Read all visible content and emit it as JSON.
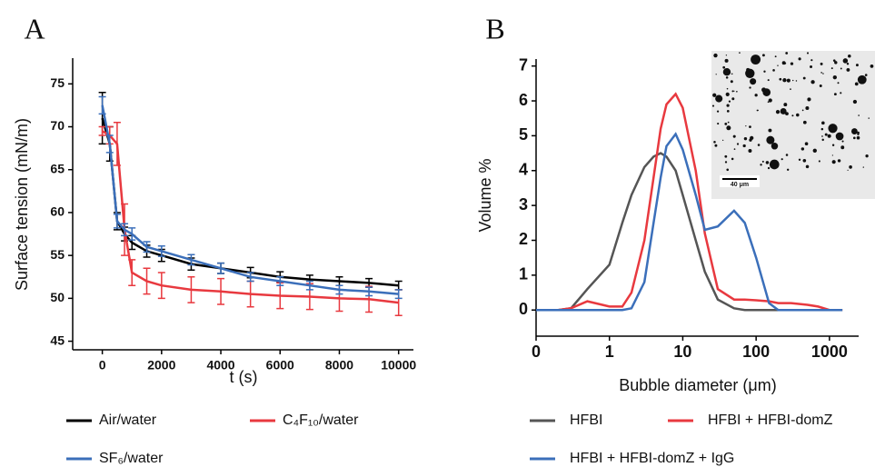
{
  "chart_data": [
    {
      "type": "line",
      "panel": "A",
      "x_label": "t (s)",
      "y_label": "Surface tension (mN/m)",
      "x": [
        0,
        250,
        500,
        750,
        1000,
        1500,
        2000,
        3000,
        4000,
        5000,
        6000,
        7000,
        8000,
        9000,
        10000
      ],
      "series": [
        {
          "name": "Air/water",
          "color": "#000000",
          "values": [
            71,
            68,
            59,
            57.5,
            56.5,
            55.5,
            55,
            54,
            53.5,
            53,
            52.5,
            52.2,
            52,
            51.8,
            51.5
          ],
          "errors": [
            3,
            2,
            1,
            0.8,
            0.8,
            0.7,
            0.7,
            0.7,
            0.6,
            0.6,
            0.6,
            0.5,
            0.5,
            0.5,
            0.5
          ]
        },
        {
          "name": "C₄F₁₀/water",
          "color": "#e8393f",
          "values": [
            69.5,
            69,
            68,
            58,
            53,
            52,
            51.5,
            51,
            50.8,
            50.5,
            50.3,
            50.2,
            50,
            49.9,
            49.5
          ],
          "errors": [
            0.5,
            1,
            2.5,
            3,
            1.5,
            1.5,
            1.5,
            1.5,
            1.5,
            1.5,
            1.5,
            1.5,
            1.5,
            1.5,
            1.5
          ]
        },
        {
          "name": "SF₆/water",
          "color": "#3b6fba",
          "values": [
            72.5,
            68,
            59,
            58,
            57.5,
            56,
            55.5,
            54.5,
            53.5,
            52.5,
            52,
            51.5,
            51,
            50.8,
            50.5
          ],
          "errors": [
            1,
            1,
            0.8,
            0.7,
            0.7,
            0.6,
            0.6,
            0.6,
            0.6,
            0.5,
            0.5,
            0.5,
            0.5,
            0.5,
            0.5
          ]
        }
      ],
      "xlim": [
        -1000,
        10500
      ],
      "xticks": [
        0,
        2000,
        4000,
        6000,
        8000,
        10000
      ],
      "ylim": [
        44,
        78
      ],
      "yticks": [
        45,
        50,
        55,
        60,
        65,
        70,
        75
      ]
    },
    {
      "type": "line",
      "panel": "B",
      "x_label": "Bubble diameter (μm)",
      "y_label": "Volume %",
      "log_x": true,
      "inset_label": "40 μm",
      "x": [
        0.1,
        0.2,
        0.3,
        0.5,
        1,
        1.5,
        2,
        3,
        4,
        5,
        6,
        8,
        10,
        15,
        20,
        30,
        50,
        70,
        100,
        150,
        200,
        300,
        500,
        700,
        1000,
        1500
      ],
      "series": [
        {
          "name": "HFBI",
          "color": "#555555",
          "values": [
            0,
            0,
            0.05,
            0.6,
            1.3,
            2.5,
            3.3,
            4.1,
            4.4,
            4.5,
            4.4,
            4.0,
            3.3,
            2.0,
            1.1,
            0.3,
            0.05,
            0,
            0,
            0,
            0,
            0,
            0,
            0,
            0,
            0
          ]
        },
        {
          "name": "HFBI + HFBI-domZ",
          "color": "#e8393f",
          "values": [
            0,
            0,
            0.05,
            0.25,
            0.1,
            0.1,
            0.5,
            2.0,
            3.8,
            5.2,
            5.9,
            6.2,
            5.8,
            4.0,
            2.2,
            0.6,
            0.3,
            0.3,
            0.28,
            0.25,
            0.2,
            0.2,
            0.15,
            0.1,
            0,
            0
          ]
        },
        {
          "name": "HFBI + HFBI-domZ + IgG",
          "color": "#3b6fba",
          "values": [
            0,
            0,
            0,
            0,
            0,
            0,
            0.05,
            0.8,
            2.5,
            3.8,
            4.7,
            5.05,
            4.6,
            3.3,
            2.3,
            2.4,
            2.85,
            2.5,
            1.5,
            0.2,
            0,
            0,
            0,
            0,
            0,
            0
          ]
        }
      ],
      "xlim": [
        0.1,
        2500
      ],
      "xticks": [
        {
          "value": 0.1,
          "label": "0"
        },
        1,
        10,
        100,
        1000
      ],
      "ylim": [
        -0.75,
        7.2
      ],
      "yticks": [
        0,
        1,
        2,
        3,
        4,
        5,
        6,
        7
      ]
    }
  ]
}
